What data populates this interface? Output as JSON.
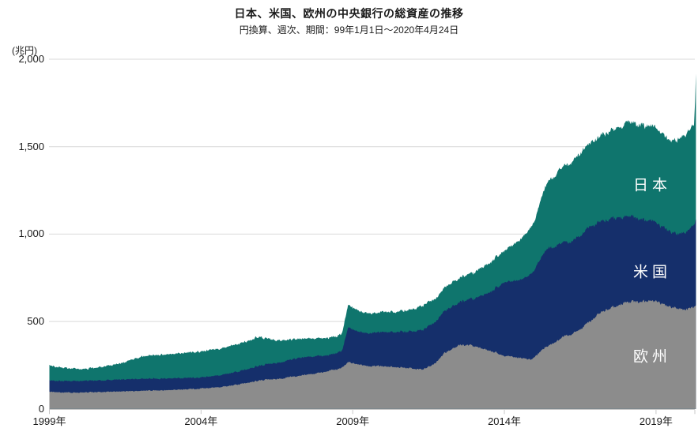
{
  "header": {
    "title": "日本、米国、欧州の中央銀行の総資産の推移",
    "subtitle": "円換算、週次、期間：99年1月1日～2020年4月24日"
  },
  "chart_data": {
    "type": "area",
    "stacked": true,
    "title": "日本、米国、欧州の中央銀行の総資産の推移",
    "subtitle": "円換算、週次、期間：99年1月1日～2020年4月24日",
    "ylabel": "(兆円)",
    "xlabel": "",
    "x_range": [
      1999.0,
      2020.315
    ],
    "ylim": [
      0,
      2000
    ],
    "grid": true,
    "legend_position": "in-plot-right",
    "y_ticks": [
      {
        "label": "2,000",
        "value": 2000
      },
      {
        "label": "1,500",
        "value": 1500
      },
      {
        "label": "1,000",
        "value": 1000
      },
      {
        "label": "500",
        "value": 500
      },
      {
        "label": "0",
        "value": 0
      }
    ],
    "x_ticks": [
      {
        "label": "1999年",
        "year": 1999
      },
      {
        "label": "2004年",
        "year": 2004
      },
      {
        "label": "2009年",
        "year": 2009
      },
      {
        "label": "2014年",
        "year": 2014
      },
      {
        "label": "2019年",
        "year": 2019
      }
    ],
    "stack_order": "bottom-to-top",
    "series": [
      {
        "name": "欧州",
        "color": "#8c8c8c",
        "anchors": [
          [
            1999,
            98
          ],
          [
            1999.7,
            93
          ],
          [
            2000.5,
            96
          ],
          [
            2001.5,
            101
          ],
          [
            2002.5,
            106
          ],
          [
            2003.5,
            111
          ],
          [
            2004,
            117
          ],
          [
            2004.8,
            128
          ],
          [
            2005.5,
            148
          ],
          [
            2006,
            165
          ],
          [
            2006.5,
            172
          ],
          [
            2007,
            185
          ],
          [
            2007.5,
            196
          ],
          [
            2008,
            210
          ],
          [
            2008.6,
            232
          ],
          [
            2008.85,
            268
          ],
          [
            2009.1,
            258
          ],
          [
            2009.5,
            246
          ],
          [
            2010,
            244
          ],
          [
            2010.5,
            240
          ],
          [
            2011,
            231
          ],
          [
            2011.3,
            226
          ],
          [
            2011.7,
            258
          ],
          [
            2012,
            316
          ],
          [
            2012.5,
            366
          ],
          [
            2012.9,
            362
          ],
          [
            2013.3,
            345
          ],
          [
            2013.8,
            318
          ],
          [
            2014,
            307
          ],
          [
            2014.5,
            290
          ],
          [
            2014.9,
            281
          ],
          [
            2015.35,
            352
          ],
          [
            2016,
            415
          ],
          [
            2016.4,
            443
          ],
          [
            2017,
            525
          ],
          [
            2017.2,
            556
          ],
          [
            2017.7,
            590
          ],
          [
            2018,
            612
          ],
          [
            2018.5,
            612
          ],
          [
            2019,
            616
          ],
          [
            2019.5,
            580
          ],
          [
            2019.8,
            572
          ],
          [
            2020.1,
            574
          ],
          [
            2020.27,
            582
          ],
          [
            2020.315,
            600
          ]
        ]
      },
      {
        "name": "米国",
        "color": "#152f6b",
        "anchors": [
          [
            1999,
            64
          ],
          [
            1999.9,
            67
          ],
          [
            2000.5,
            66
          ],
          [
            2001.7,
            69
          ],
          [
            2002.5,
            68
          ],
          [
            2003.5,
            65
          ],
          [
            2004,
            64
          ],
          [
            2005,
            72
          ],
          [
            2006,
            85
          ],
          [
            2006.7,
            95
          ],
          [
            2007.2,
            103
          ],
          [
            2007.8,
            98
          ],
          [
            2008.3,
            90
          ],
          [
            2008.65,
            95
          ],
          [
            2008.85,
            200
          ],
          [
            2009,
            192
          ],
          [
            2009.4,
            185
          ],
          [
            2010,
            196
          ],
          [
            2010.6,
            204
          ],
          [
            2011,
            215
          ],
          [
            2011.5,
            232
          ],
          [
            2012,
            240
          ],
          [
            2012.5,
            244
          ],
          [
            2013,
            272
          ],
          [
            2013.5,
            330
          ],
          [
            2014,
            420
          ],
          [
            2014.5,
            442
          ],
          [
            2015,
            500
          ],
          [
            2015.35,
            560
          ],
          [
            2015.8,
            545
          ],
          [
            2016.2,
            530
          ],
          [
            2016.8,
            540
          ],
          [
            2017.2,
            519
          ],
          [
            2017.8,
            500
          ],
          [
            2018.2,
            485
          ],
          [
            2018.8,
            460
          ],
          [
            2019,
            451
          ],
          [
            2019.4,
            432
          ],
          [
            2019.7,
            428
          ],
          [
            2019.95,
            442
          ],
          [
            2020.15,
            458
          ],
          [
            2020.27,
            470
          ],
          [
            2020.315,
            500
          ]
        ]
      },
      {
        "name": "日本",
        "color": "#0f756d",
        "anchors": [
          [
            1999,
            86
          ],
          [
            1999.6,
            72
          ],
          [
            2000.2,
            68
          ],
          [
            2000.8,
            78
          ],
          [
            2001.3,
            92
          ],
          [
            2001.9,
            120
          ],
          [
            2002.3,
            133
          ],
          [
            2003,
            138
          ],
          [
            2003.6,
            143
          ],
          [
            2004,
            149
          ],
          [
            2004.6,
            152
          ],
          [
            2005.2,
            158
          ],
          [
            2005.9,
            164
          ],
          [
            2006.3,
            140
          ],
          [
            2006.8,
            118
          ],
          [
            2007.3,
            108
          ],
          [
            2008,
            100
          ],
          [
            2008.6,
            95
          ],
          [
            2008.85,
            130
          ],
          [
            2009.2,
            118
          ],
          [
            2009.8,
            113
          ],
          [
            2010.4,
            115
          ],
          [
            2010.9,
            124
          ],
          [
            2011.3,
            140
          ],
          [
            2011.8,
            130
          ],
          [
            2012.2,
            136
          ],
          [
            2012.7,
            142
          ],
          [
            2013,
            150
          ],
          [
            2013.5,
            168
          ],
          [
            2014,
            181
          ],
          [
            2014.5,
            228
          ],
          [
            2015,
            280
          ],
          [
            2015.35,
            370
          ],
          [
            2016,
            440
          ],
          [
            2016.5,
            472
          ],
          [
            2017,
            482
          ],
          [
            2017.5,
            502
          ],
          [
            2018,
            532
          ],
          [
            2018.5,
            537
          ],
          [
            2019,
            540
          ],
          [
            2019.5,
            522
          ],
          [
            2019.8,
            546
          ],
          [
            2020.1,
            568
          ],
          [
            2020.25,
            572
          ],
          [
            2020.29,
            690
          ],
          [
            2020.315,
            824
          ]
        ]
      }
    ],
    "series_labels": [
      {
        "text": "日本"
      },
      {
        "text": "米国"
      },
      {
        "text": "欧州"
      }
    ]
  },
  "colors": {
    "japan_area": "#0f756d",
    "us_area": "#152f6b",
    "europe_area": "#8c8c8c",
    "gridline": "#d9d9d9",
    "axis": "#c9c9c9",
    "text": "#1a1a1a",
    "series_label_text": "#ffffff"
  }
}
